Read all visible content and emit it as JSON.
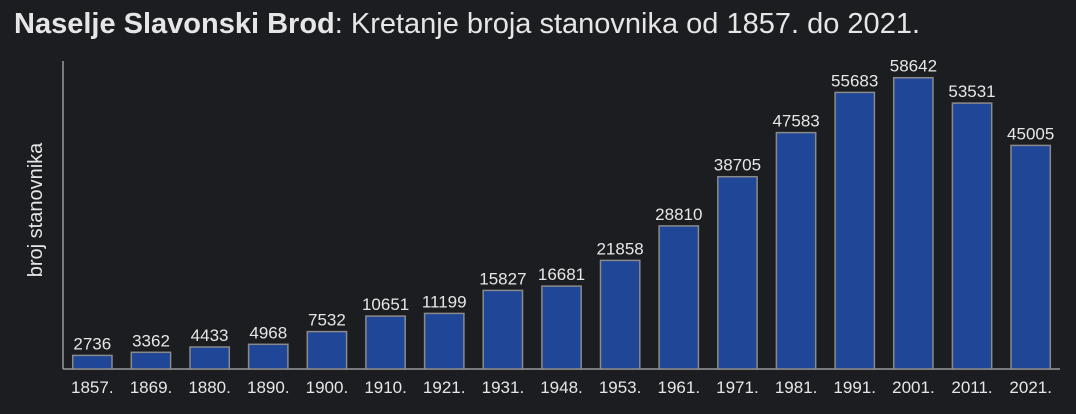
{
  "title": {
    "bold": "Naselje Slavonski Brod",
    "rest": ": Kretanje broja stanovnika od 1857. do 2021."
  },
  "colors": {
    "background": "#1c1d20",
    "bar": "#1f4697",
    "bar_border": "#8a8a8a",
    "text": "#e6e6e6",
    "axis": "#9a9a9a"
  },
  "chart_data": {
    "type": "bar",
    "title": "Naselje Slavonski Brod: Kretanje broja stanovnika od 1857. do 2021.",
    "xlabel": "",
    "ylabel": "broj stanovnika",
    "categories": [
      "1857.",
      "1869.",
      "1880.",
      "1890.",
      "1900.",
      "1910.",
      "1921.",
      "1931.",
      "1948.",
      "1953.",
      "1961.",
      "1971.",
      "1981.",
      "1991.",
      "2001.",
      "2011.",
      "2021."
    ],
    "values": [
      2736,
      3362,
      4433,
      4968,
      7532,
      10651,
      11199,
      15827,
      16681,
      21858,
      28810,
      38705,
      47583,
      55683,
      58642,
      53531,
      45005
    ],
    "ylim": [
      0,
      62000
    ],
    "grid": false,
    "data_labels": true
  }
}
